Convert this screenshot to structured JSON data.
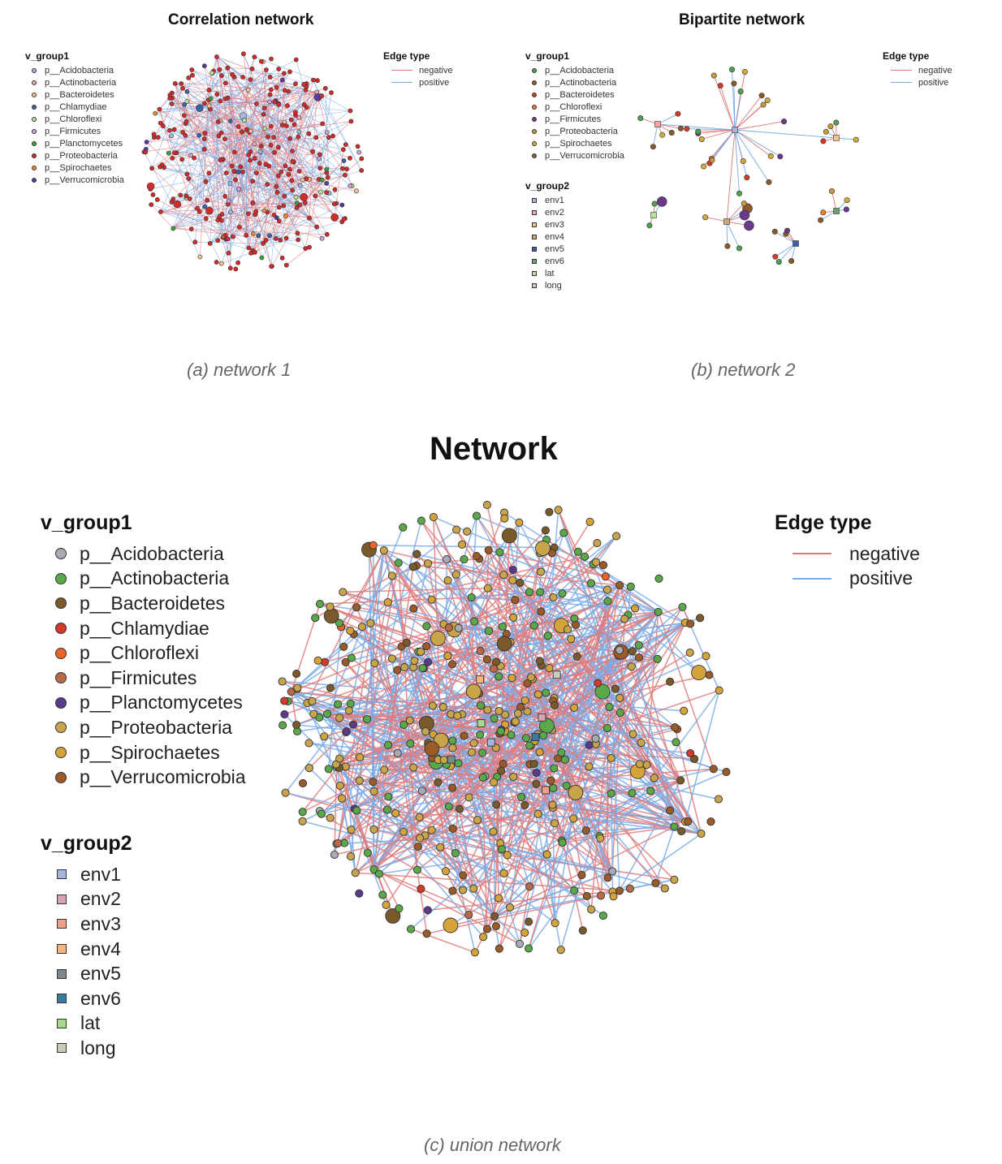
{
  "panels": {
    "a": {
      "title": "Correlation network",
      "caption": "(a) network 1",
      "group1_title": "v_group1",
      "group1": [
        {
          "label": "p__Acidobacteria",
          "color": "#a6b6dc"
        },
        {
          "label": "p__Actinobacteria",
          "color": "#f4a6a6"
        },
        {
          "label": "p__Bacteroidetes",
          "color": "#f7c08f"
        },
        {
          "label": "p__Chlamydiae",
          "color": "#3a63a8"
        },
        {
          "label": "p__Chloroflexi",
          "color": "#b7e39b"
        },
        {
          "label": "p__Firmicutes",
          "color": "#c8a6dc"
        },
        {
          "label": "p__Planctomycetes",
          "color": "#3aa33a"
        },
        {
          "label": "p__Proteobacteria",
          "color": "#d42a2a"
        },
        {
          "label": "p__Spirochaetes",
          "color": "#f08a2a"
        },
        {
          "label": "p__Verrucomicrobia",
          "color": "#5a3aa0"
        }
      ],
      "edge_title": "Edge type",
      "edges": [
        {
          "label": "negative",
          "color": "#e07a7a"
        },
        {
          "label": "positive",
          "color": "#7aaae6"
        }
      ]
    },
    "b": {
      "title": "Bipartite network",
      "caption": "(b) network 2",
      "group1_title": "v_group1",
      "group1": [
        {
          "label": "p__Acidobacteria",
          "color": "#4aa34a"
        },
        {
          "label": "p__Actinobacteria",
          "color": "#8a5a2a"
        },
        {
          "label": "p__Bacteroidetes",
          "color": "#d43a2a"
        },
        {
          "label": "p__Chloroflexi",
          "color": "#f07a2a"
        },
        {
          "label": "p__Firmicutes",
          "color": "#6a3a8a"
        },
        {
          "label": "p__Proteobacteria",
          "color": "#c89a3a"
        },
        {
          "label": "p__Spirochaetes",
          "color": "#d4aa3a"
        },
        {
          "label": "p__Verrucomicrobia",
          "color": "#8a5a2a"
        }
      ],
      "group2_title": "v_group2",
      "group2": [
        {
          "label": "env1",
          "color": "#a6b6dc"
        },
        {
          "label": "env2",
          "color": "#f4a6a6"
        },
        {
          "label": "env3",
          "color": "#f7c08f"
        },
        {
          "label": "env4",
          "color": "#c8a67a"
        },
        {
          "label": "env5",
          "color": "#3a63a8"
        },
        {
          "label": "env6",
          "color": "#6aa36a"
        },
        {
          "label": "lat",
          "color": "#b7e39b"
        },
        {
          "label": "long",
          "color": "#c8c8c8"
        }
      ],
      "edge_title": "Edge type",
      "edges": [
        {
          "label": "negative",
          "color": "#e07a7a"
        },
        {
          "label": "positive",
          "color": "#7aaae6"
        }
      ]
    },
    "c": {
      "title": "Network",
      "caption": "(c) union network",
      "group1_title": "v_group1",
      "group1": [
        {
          "label": "p__Acidobacteria",
          "color": "#a8aab4"
        },
        {
          "label": "p__Actinobacteria",
          "color": "#5aa84a"
        },
        {
          "label": "p__Bacteroidetes",
          "color": "#7a5a2a"
        },
        {
          "label": "p__Chlamydiae",
          "color": "#d43a2a"
        },
        {
          "label": "p__Chloroflexi",
          "color": "#e8642a"
        },
        {
          "label": "p__Firmicutes",
          "color": "#b86a4a"
        },
        {
          "label": "p__Planctomycetes",
          "color": "#5a3a8a"
        },
        {
          "label": "p__Proteobacteria",
          "color": "#c8a44a"
        },
        {
          "label": "p__Spirochaetes",
          "color": "#d4a43a"
        },
        {
          "label": "p__Verrucomicrobia",
          "color": "#9a5a2a"
        }
      ],
      "group2_title": "v_group2",
      "group2": [
        {
          "label": "env1",
          "color": "#a6b6dc"
        },
        {
          "label": "env2",
          "color": "#d8a6b0"
        },
        {
          "label": "env3",
          "color": "#f0a08a"
        },
        {
          "label": "env4",
          "color": "#f4b67a"
        },
        {
          "label": "env5",
          "color": "#7a8a8a"
        },
        {
          "label": "env6",
          "color": "#3a7aa0"
        },
        {
          "label": "lat",
          "color": "#a8d88a"
        },
        {
          "label": "long",
          "color": "#c8ccb8"
        }
      ],
      "edge_title": "Edge type",
      "edges": [
        {
          "label": "negative",
          "color": "#e07a7a"
        },
        {
          "label": "positive",
          "color": "#7aaae6"
        }
      ]
    }
  }
}
